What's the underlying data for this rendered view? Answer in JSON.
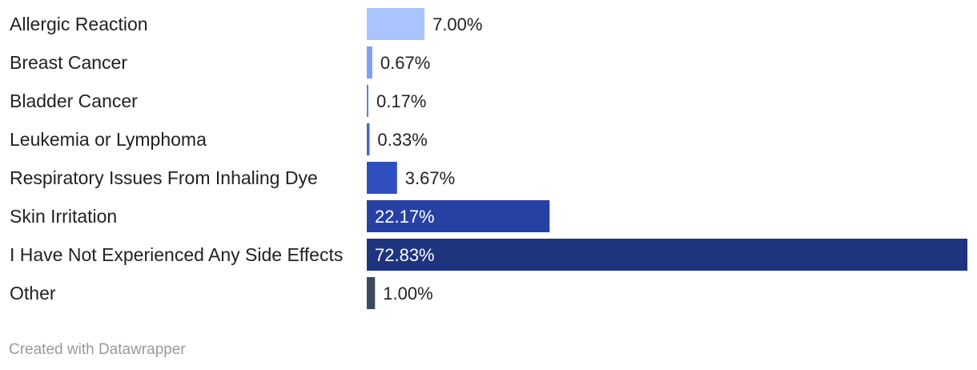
{
  "chart_data": {
    "type": "bar",
    "orientation": "horizontal",
    "categories": [
      "Allergic Reaction",
      "Breast Cancer",
      "Bladder Cancer",
      "Leukemia or Lymphoma",
      "Respiratory Issues From Inhaling Dye",
      "Skin Irritation",
      "I Have Not Experienced Any Side Effects",
      "Other"
    ],
    "values": [
      7.0,
      0.67,
      0.17,
      0.33,
      3.67,
      22.17,
      72.83,
      1.0
    ],
    "value_labels": [
      "7.00%",
      "0.67%",
      "0.17%",
      "0.33%",
      "3.67%",
      "22.17%",
      "72.83%",
      "1.00%"
    ],
    "colors": [
      "#a9c4fe",
      "#7f9ff4",
      "#5b7fe5",
      "#4263cf",
      "#2f4fc0",
      "#2641a4",
      "#1f347f",
      "#3a4a5c"
    ],
    "xlim": [
      0,
      72.83
    ],
    "grid": false,
    "legend": "none"
  },
  "footer": {
    "credit": "Created with Datawrapper"
  }
}
